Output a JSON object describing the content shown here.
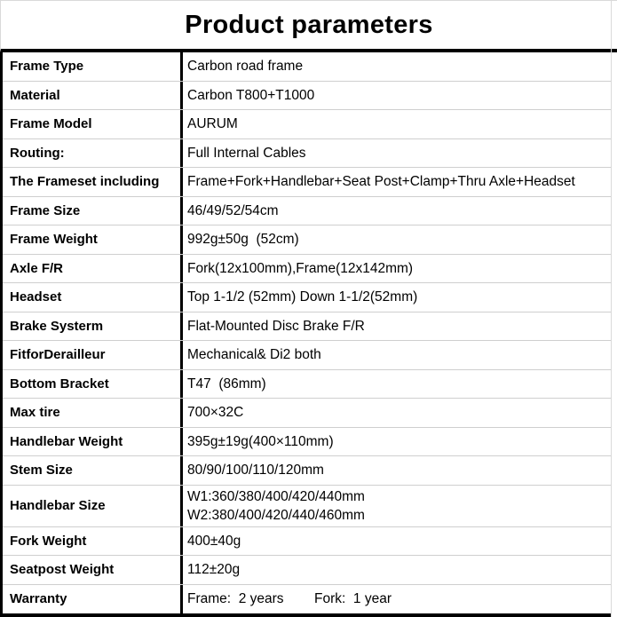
{
  "title": "Product parameters",
  "colors": {
    "border_strong": "#000000",
    "gridline": "#cfcfcf",
    "text": "#000000",
    "background": "#ffffff"
  },
  "table": {
    "rows": [
      {
        "label": "Frame Type",
        "value": "Carbon road frame"
      },
      {
        "label": "Material",
        "value": "Carbon T800+T1000"
      },
      {
        "label": "Frame Model",
        "value": "AURUM"
      },
      {
        "label": "Routing:",
        "value": "Full Internal Cables"
      },
      {
        "label": "The Frameset including",
        "value": "Frame+Fork+Handlebar+Seat Post+Clamp+Thru Axle+Headset"
      },
      {
        "label": "Frame Size",
        "value": "46/49/52/54cm"
      },
      {
        "label": "Frame Weight",
        "value": "992g±50g  (52cm)"
      },
      {
        "label": "Axle F/R",
        "value": "Fork(12x100mm),Frame(12x142mm)"
      },
      {
        "label": "Headset",
        "value": "Top 1-1/2 (52mm) Down 1-1/2(52mm)"
      },
      {
        "label": "Brake Systerm",
        "value": "Flat-Mounted Disc Brake F/R"
      },
      {
        "label": "FitforDerailleur",
        "value": "Mechanical& Di2 both"
      },
      {
        "label": "Bottom Bracket",
        "value": "T47  (86mm)"
      },
      {
        "label": "Max tire",
        "value": "700×32C"
      },
      {
        "label": "Handlebar Weight",
        "value": "395g±19g(400×110mm)"
      },
      {
        "label": "Stem Size",
        "value": "80/90/100/110/120mm"
      },
      {
        "label": "Handlebar Size",
        "value": "W1:360/380/400/420/440mm\nW2:380/400/420/440/460mm",
        "double": true
      },
      {
        "label": "Fork Weight",
        "value": "400±40g"
      },
      {
        "label": "Seatpost Weight",
        "value": "112±20g"
      },
      {
        "label": "Warranty",
        "value": "Frame:  2 years        Fork:  1 year"
      }
    ]
  }
}
